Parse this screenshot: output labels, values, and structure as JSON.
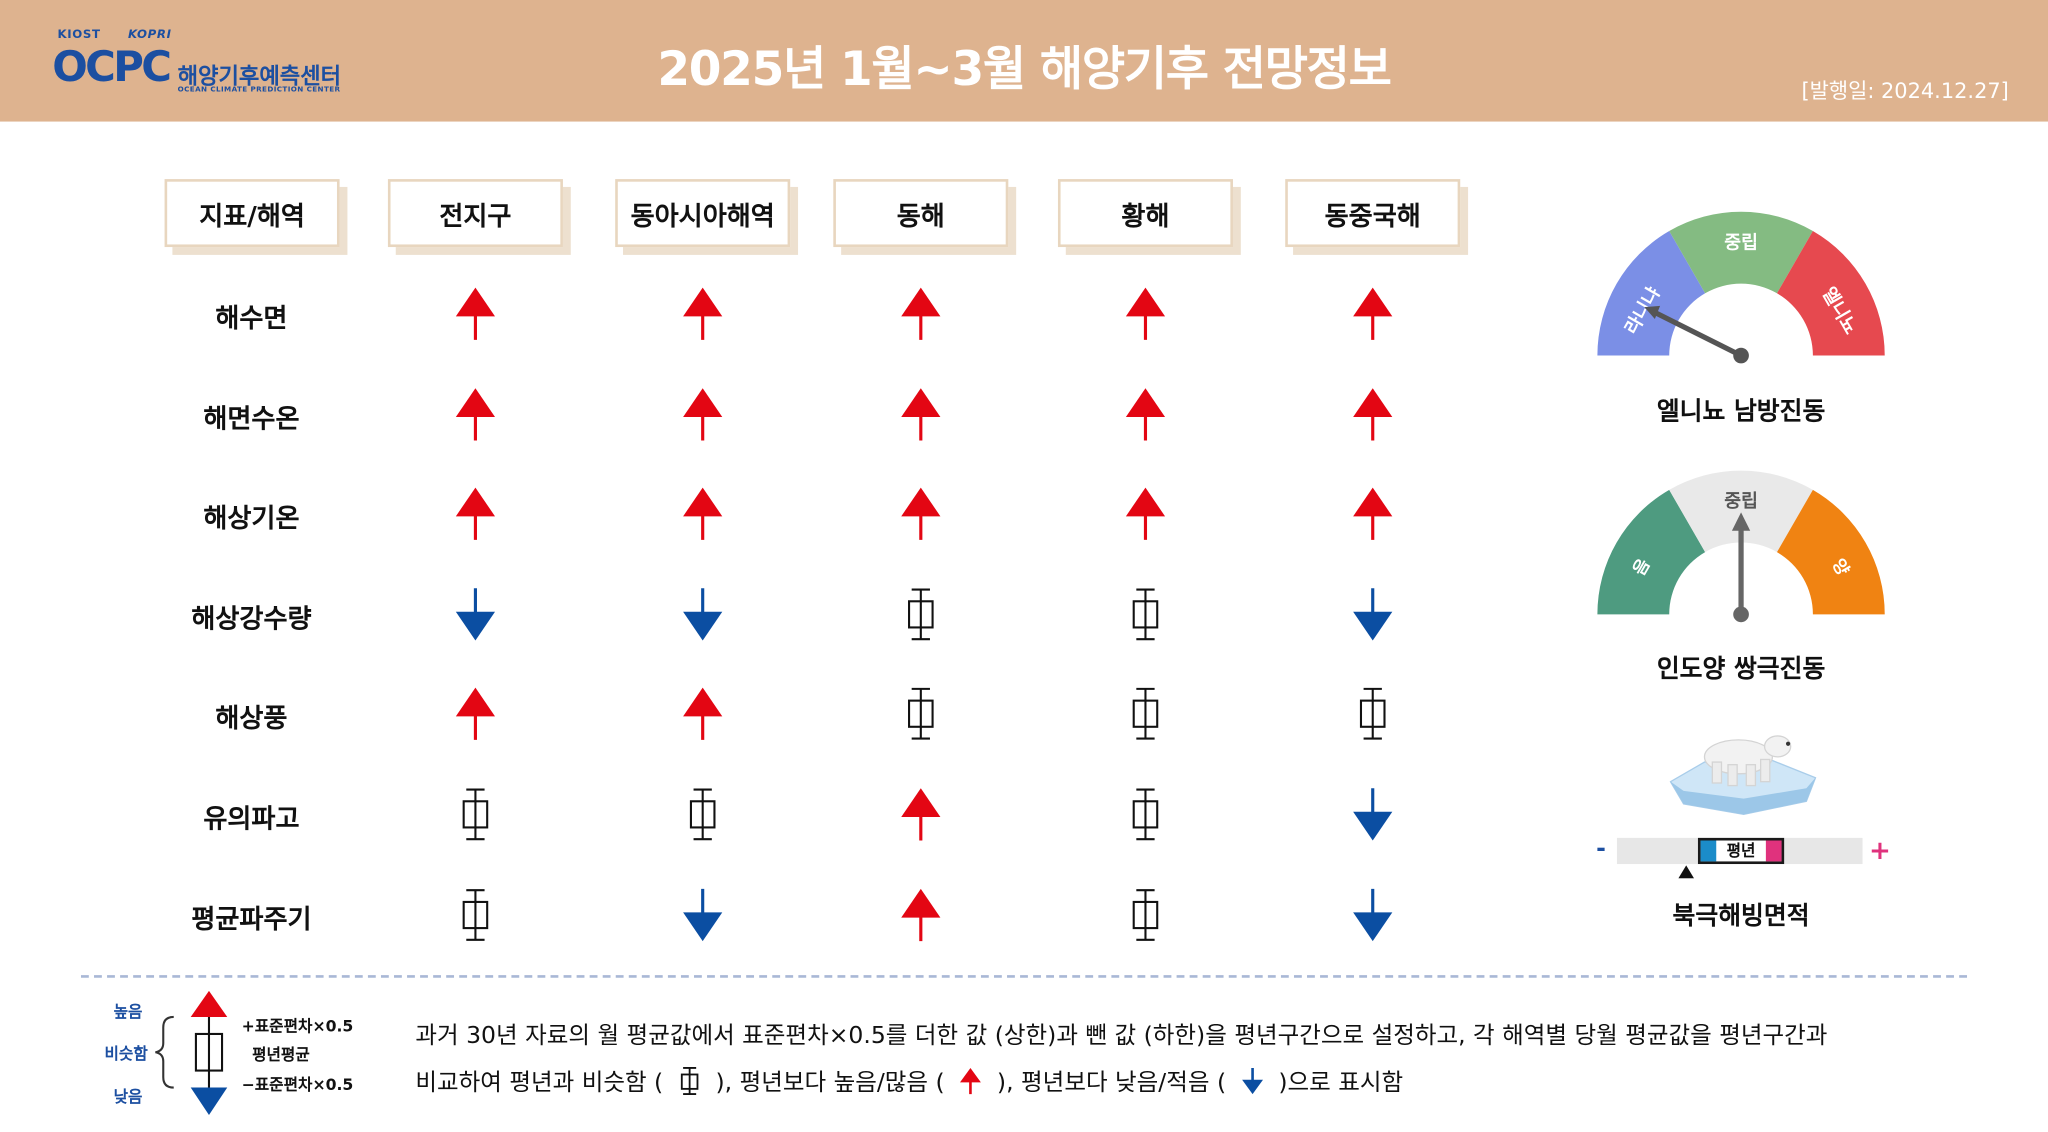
{
  "header": {
    "logo": {
      "kiost": "KIOST",
      "kopri": "KOPRI",
      "ocpc": "OCPC",
      "name_ko": "해양기후예측센터",
      "name_en": "OCEAN CLIMATE PREDICTION CENTER"
    },
    "title": "2025년 1월~3월 해양기후 전망정보",
    "pub_date": "[발행일: 2024.12.27]"
  },
  "colors": {
    "header_bg": "#deb38f",
    "up": "#e30613",
    "down": "#0b4ea2",
    "normal": "#111111"
  },
  "table": {
    "columns": [
      "지표/해역",
      "전지구",
      "동아시아해역",
      "동해",
      "황해",
      "동중국해"
    ],
    "rows": [
      {
        "label": "해수면",
        "values": [
          "up",
          "up",
          "up",
          "up",
          "up"
        ]
      },
      {
        "label": "해면수온",
        "values": [
          "up",
          "up",
          "up",
          "up",
          "up"
        ]
      },
      {
        "label": "해상기온",
        "values": [
          "up",
          "up",
          "up",
          "up",
          "up"
        ]
      },
      {
        "label": "해상강수량",
        "values": [
          "down",
          "down",
          "normal",
          "normal",
          "down"
        ]
      },
      {
        "label": "해상풍",
        "values": [
          "up",
          "up",
          "normal",
          "normal",
          "normal"
        ]
      },
      {
        "label": "유의파고",
        "values": [
          "normal",
          "normal",
          "up",
          "normal",
          "down"
        ]
      },
      {
        "label": "평균파주기",
        "values": [
          "normal",
          "down",
          "up",
          "normal",
          "down"
        ]
      }
    ]
  },
  "gauges": {
    "enso": {
      "label": "엘니뇨 남방진동",
      "left": "라니냐",
      "center": "중립",
      "right": "엘니뇨",
      "colors": [
        "#7b8fe6",
        "#84bb82",
        "#e6494f"
      ],
      "state": "라니냐"
    },
    "iod": {
      "label": "인도양 쌍극진동",
      "left": "음",
      "center": "중립",
      "right": "양",
      "colors": [
        "#4e9b80",
        "#e9e9e9",
        "#f08312"
      ],
      "state": "중립"
    }
  },
  "sea_ice": {
    "label": "북극해빙면적",
    "minus": "-",
    "plus": "+",
    "normal": "평년",
    "state": "below-normal"
  },
  "legend": {
    "high": "높음",
    "similar": "비슷함",
    "low": "낮음",
    "plus_sd": "+표준편차×0.5",
    "mean": "평년평균",
    "minus_sd": "−표준편차×0.5",
    "line1": "과거 30년 자료의 월 평균값에서 표준편차×0.5를   더한 값 (상한)과 뺀 값 (하한)을 평년구간으로   설정하고, 각 해역별  당월 평균값을 평년구간과",
    "line2_a": "비교하여 평년과 비슷함 (",
    "line2_b": "),   평년보다  높음/많음 (",
    "line2_c": "), 평년보다  낮음/적음 (",
    "line2_d": ")으로  표시함"
  }
}
